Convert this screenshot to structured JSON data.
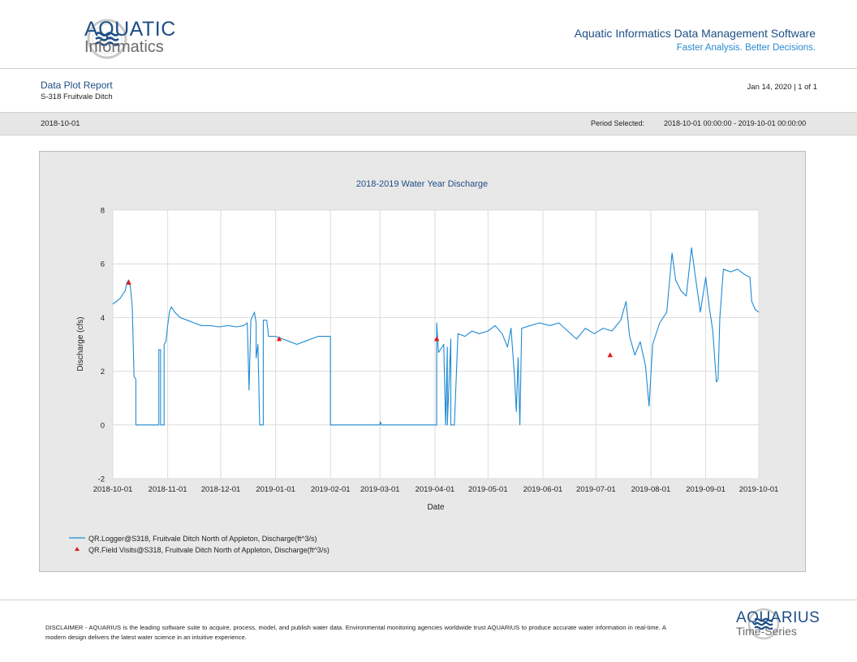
{
  "header": {
    "brand_name": "AQUATIC",
    "brand_sub": "Informatics",
    "software_title": "Aquatic Informatics Data Management Software",
    "tagline": "Faster Analysis. Better Decisions."
  },
  "report": {
    "title": "Data Plot Report",
    "location": "S-318 Fruitvale Ditch",
    "date_page": "Jan 14, 2020 | 1 of 1"
  },
  "band": {
    "left": "2018-10-01",
    "period_label": "Period Selected:",
    "period_value": "2018-10-01 00:00:00 - 2019-10-01 00:00:00"
  },
  "colors": {
    "line": "#1f8ad2",
    "marker": "#e31b1b",
    "brand": "#1e4e86",
    "accent": "#2a8ad1"
  },
  "chart_data": {
    "type": "line",
    "title": "2018-2019 Water Year Discharge",
    "xlabel": "Date",
    "ylabel": "Discharge (cfs)",
    "ylim": [
      -2,
      8
    ],
    "yticks": [
      -2,
      0,
      2,
      4,
      6,
      8
    ],
    "xlim": [
      "2018-10-01",
      "2019-10-01"
    ],
    "xticks": [
      "2018-10-01",
      "2018-11-01",
      "2018-12-01",
      "2019-01-01",
      "2019-02-01",
      "2019-03-01",
      "2019-04-01",
      "2019-05-01",
      "2019-06-01",
      "2019-07-01",
      "2019-08-01",
      "2019-09-01",
      "2019-10-01"
    ],
    "grid": true,
    "legend_position": "bottom-left",
    "series": [
      {
        "name": "QR.Logger@S318, Fruitvale Ditch North of Appleton, Discharge(ft^3/s)",
        "kind": "line",
        "points": [
          [
            "2018-10-01",
            4.5
          ],
          [
            "2018-10-03",
            4.6
          ],
          [
            "2018-10-05",
            4.7
          ],
          [
            "2018-10-07",
            4.9
          ],
          [
            "2018-10-08",
            5.0
          ],
          [
            "2018-10-09",
            5.3
          ],
          [
            "2018-10-10",
            5.4
          ],
          [
            "2018-10-11",
            5.1
          ],
          [
            "2018-10-12",
            4.4
          ],
          [
            "2018-10-13",
            1.8
          ],
          [
            "2018-10-14",
            1.7
          ],
          [
            "2018-10-14",
            0.0
          ],
          [
            "2018-10-27",
            0.0
          ],
          [
            "2018-10-27",
            2.8
          ],
          [
            "2018-10-28",
            2.8
          ],
          [
            "2018-10-28",
            0.0
          ],
          [
            "2018-10-30",
            0.0
          ],
          [
            "2018-10-30",
            3.0
          ],
          [
            "2018-10-31",
            3.1
          ],
          [
            "2018-11-01",
            3.7
          ],
          [
            "2018-11-02",
            4.2
          ],
          [
            "2018-11-03",
            4.4
          ],
          [
            "2018-11-05",
            4.2
          ],
          [
            "2018-11-08",
            4.0
          ],
          [
            "2018-11-12",
            3.9
          ],
          [
            "2018-11-16",
            3.8
          ],
          [
            "2018-11-20",
            3.7
          ],
          [
            "2018-11-25",
            3.7
          ],
          [
            "2018-11-30",
            3.65
          ],
          [
            "2018-12-05",
            3.7
          ],
          [
            "2018-12-10",
            3.65
          ],
          [
            "2018-12-14",
            3.7
          ],
          [
            "2018-12-16",
            3.8
          ],
          [
            "2018-12-17",
            1.3
          ],
          [
            "2018-12-18",
            3.9
          ],
          [
            "2018-12-20",
            4.2
          ],
          [
            "2018-12-21",
            3.8
          ],
          [
            "2018-12-21",
            2.5
          ],
          [
            "2018-12-22",
            3.0
          ],
          [
            "2018-12-23",
            0.0
          ],
          [
            "2018-12-25",
            0.0
          ],
          [
            "2018-12-25",
            3.9
          ],
          [
            "2018-12-27",
            3.9
          ],
          [
            "2018-12-28",
            3.3
          ],
          [
            "2019-01-01",
            3.3
          ],
          [
            "2019-01-05",
            3.2
          ],
          [
            "2019-01-09",
            3.1
          ],
          [
            "2019-01-13",
            3.0
          ],
          [
            "2019-01-17",
            3.1
          ],
          [
            "2019-01-21",
            3.2
          ],
          [
            "2019-01-25",
            3.3
          ],
          [
            "2019-01-30",
            3.3
          ],
          [
            "2019-02-01",
            3.3
          ],
          [
            "2019-02-01",
            0.0
          ],
          [
            "2019-03-01",
            0.0
          ],
          [
            "2019-03-01",
            0.12
          ],
          [
            "2019-03-02",
            0.0
          ],
          [
            "2019-04-02",
            0.0
          ],
          [
            "2019-04-02",
            3.8
          ],
          [
            "2019-04-03",
            2.7
          ],
          [
            "2019-04-06",
            3.0
          ],
          [
            "2019-04-07",
            0.0
          ],
          [
            "2019-04-08",
            2.9
          ],
          [
            "2019-04-08",
            0.0
          ],
          [
            "2019-04-10",
            3.2
          ],
          [
            "2019-04-10",
            0.0
          ],
          [
            "2019-04-12",
            0.0
          ],
          [
            "2019-04-14",
            3.4
          ],
          [
            "2019-04-18",
            3.3
          ],
          [
            "2019-04-22",
            3.5
          ],
          [
            "2019-04-26",
            3.4
          ],
          [
            "2019-05-01",
            3.5
          ],
          [
            "2019-05-05",
            3.7
          ],
          [
            "2019-05-09",
            3.4
          ],
          [
            "2019-05-12",
            2.9
          ],
          [
            "2019-05-14",
            3.6
          ],
          [
            "2019-05-16",
            1.8
          ],
          [
            "2019-05-17",
            0.5
          ],
          [
            "2019-05-18",
            2.5
          ],
          [
            "2019-05-19",
            0.0
          ],
          [
            "2019-05-20",
            3.6
          ],
          [
            "2019-05-25",
            3.7
          ],
          [
            "2019-05-30",
            3.8
          ],
          [
            "2019-06-05",
            3.7
          ],
          [
            "2019-06-10",
            3.8
          ],
          [
            "2019-06-15",
            3.5
          ],
          [
            "2019-06-20",
            3.2
          ],
          [
            "2019-06-25",
            3.6
          ],
          [
            "2019-06-30",
            3.4
          ],
          [
            "2019-07-05",
            3.6
          ],
          [
            "2019-07-10",
            3.5
          ],
          [
            "2019-07-15",
            3.9
          ],
          [
            "2019-07-18",
            4.6
          ],
          [
            "2019-07-20",
            3.3
          ],
          [
            "2019-07-23",
            2.6
          ],
          [
            "2019-07-26",
            3.1
          ],
          [
            "2019-07-29",
            2.2
          ],
          [
            "2019-07-31",
            0.7
          ],
          [
            "2019-08-02",
            3.0
          ],
          [
            "2019-08-06",
            3.8
          ],
          [
            "2019-08-10",
            4.2
          ],
          [
            "2019-08-13",
            6.4
          ],
          [
            "2019-08-15",
            5.4
          ],
          [
            "2019-08-18",
            5.0
          ],
          [
            "2019-08-21",
            4.8
          ],
          [
            "2019-08-24",
            6.6
          ],
          [
            "2019-08-26",
            5.6
          ],
          [
            "2019-08-29",
            4.2
          ],
          [
            "2019-09-01",
            5.5
          ],
          [
            "2019-09-03",
            4.4
          ],
          [
            "2019-09-05",
            3.5
          ],
          [
            "2019-09-07",
            1.6
          ],
          [
            "2019-09-08",
            1.7
          ],
          [
            "2019-09-09",
            4.0
          ],
          [
            "2019-09-11",
            5.8
          ],
          [
            "2019-09-15",
            5.7
          ],
          [
            "2019-09-19",
            5.8
          ],
          [
            "2019-09-23",
            5.6
          ],
          [
            "2019-09-26",
            5.5
          ],
          [
            "2019-09-27",
            4.6
          ],
          [
            "2019-09-29",
            4.3
          ],
          [
            "2019-10-01",
            4.2
          ]
        ]
      },
      {
        "name": "QR.Field Visits@S318, Fruitvale Ditch North of Appleton, Discharge(ft^3/s)",
        "kind": "marker",
        "points": [
          [
            "2018-10-10",
            5.3
          ],
          [
            "2019-01-03",
            3.2
          ],
          [
            "2019-04-02",
            3.2
          ],
          [
            "2019-07-09",
            2.6
          ]
        ]
      }
    ]
  },
  "footer": {
    "disclaimer": "DISCLAIMER - AQUARIUS is the leading software suite to acquire, process, model, and publish water data. Environmental monitoring agencies worldwide trust AQUARIUS to produce accurate water information in real-time. A modern design delivers the latest water science in an intuitive experience.",
    "product_name": "AQUARIUS",
    "product_sub": "Time-Series"
  }
}
